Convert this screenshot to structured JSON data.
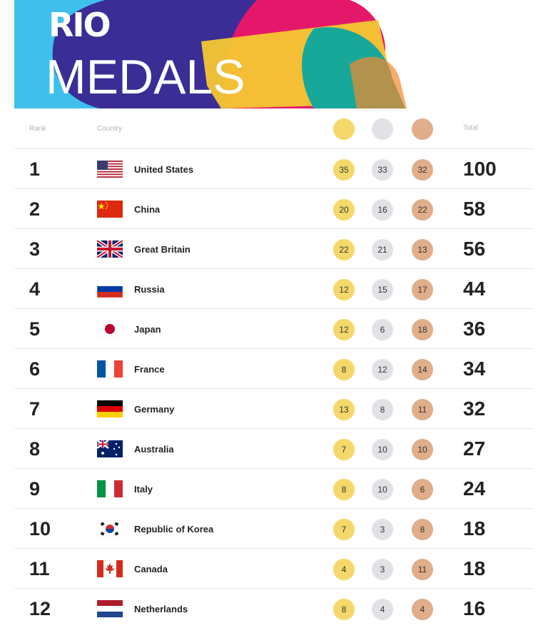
{
  "banner": {
    "rio": "RIO",
    "title": "MEDALS"
  },
  "header": {
    "rank": "Rank",
    "country": "Country",
    "total": "Total"
  },
  "colors": {
    "gold": "#f5d86a",
    "silver": "#e1e2e6",
    "bronze": "#e0ae8b"
  },
  "rows": [
    {
      "rank": "1",
      "country": "United States",
      "flag": "us-flag",
      "gold": "35",
      "silver": "33",
      "bronze": "32",
      "total": "100"
    },
    {
      "rank": "2",
      "country": "China",
      "flag": "cn-flag",
      "gold": "20",
      "silver": "16",
      "bronze": "22",
      "total": "58"
    },
    {
      "rank": "3",
      "country": "Great Britain",
      "flag": "gb-flag",
      "gold": "22",
      "silver": "21",
      "bronze": "13",
      "total": "56"
    },
    {
      "rank": "4",
      "country": "Russia",
      "flag": "ru-flag",
      "gold": "12",
      "silver": "15",
      "bronze": "17",
      "total": "44"
    },
    {
      "rank": "5",
      "country": "Japan",
      "flag": "jp-flag",
      "gold": "12",
      "silver": "6",
      "bronze": "18",
      "total": "36"
    },
    {
      "rank": "6",
      "country": "France",
      "flag": "fr-flag",
      "gold": "8",
      "silver": "12",
      "bronze": "14",
      "total": "34"
    },
    {
      "rank": "7",
      "country": "Germany",
      "flag": "de-flag",
      "gold": "13",
      "silver": "8",
      "bronze": "11",
      "total": "32"
    },
    {
      "rank": "8",
      "country": "Australia",
      "flag": "au-flag",
      "gold": "7",
      "silver": "10",
      "bronze": "10",
      "total": "27"
    },
    {
      "rank": "9",
      "country": "Italy",
      "flag": "it-flag",
      "gold": "8",
      "silver": "10",
      "bronze": "6",
      "total": "24"
    },
    {
      "rank": "10",
      "country": "Republic of Korea",
      "flag": "kr-flag",
      "gold": "7",
      "silver": "3",
      "bronze": "8",
      "total": "18"
    },
    {
      "rank": "11",
      "country": "Canada",
      "flag": "ca-flag",
      "gold": "4",
      "silver": "3",
      "bronze": "11",
      "total": "18"
    },
    {
      "rank": "12",
      "country": "Netherlands",
      "flag": "nl-flag",
      "gold": "8",
      "silver": "4",
      "bronze": "4",
      "total": "16"
    }
  ]
}
